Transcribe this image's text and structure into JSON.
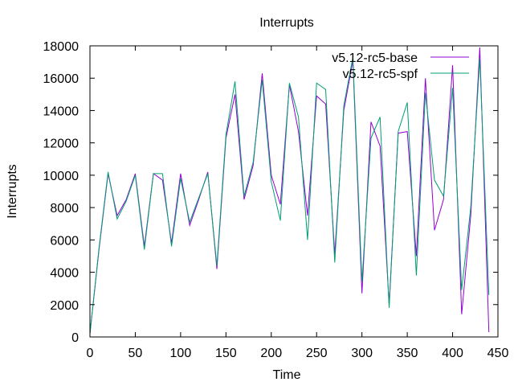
{
  "chart_data": {
    "type": "line",
    "title": "Interrupts",
    "xlabel": "Time",
    "ylabel": "Interrupts",
    "xlim": [
      0,
      450
    ],
    "ylim": [
      0,
      18000
    ],
    "xticks": [
      0,
      50,
      100,
      150,
      200,
      250,
      300,
      350,
      400,
      450
    ],
    "yticks": [
      0,
      2000,
      4000,
      6000,
      8000,
      10000,
      12000,
      14000,
      16000,
      18000
    ],
    "grid": false,
    "legend_position": "top-right",
    "x": [
      0,
      10,
      20,
      30,
      40,
      50,
      60,
      70,
      80,
      90,
      100,
      110,
      120,
      130,
      140,
      150,
      160,
      170,
      180,
      190,
      200,
      210,
      220,
      230,
      240,
      250,
      260,
      270,
      280,
      290,
      300,
      310,
      320,
      330,
      340,
      350,
      360,
      370,
      380,
      390,
      400,
      410,
      420,
      430,
      440
    ],
    "series": [
      {
        "name": "v5.12-rc5-base",
        "color": "#9400d3",
        "values": [
          200,
          5400,
          10100,
          7500,
          8500,
          10100,
          5600,
          10100,
          9700,
          5800,
          10100,
          6900,
          8500,
          10200,
          4200,
          12300,
          15000,
          8500,
          10600,
          16300,
          10000,
          8200,
          15600,
          12700,
          7500,
          14900,
          14400,
          5100,
          14000,
          17100,
          2700,
          13300,
          11800,
          2000,
          12600,
          12700,
          5000,
          16000,
          6600,
          8500,
          16800,
          1400,
          7500,
          17900,
          300
        ]
      },
      {
        "name": "v5.12-rc5-spf",
        "color": "#009e73",
        "values": [
          200,
          5500,
          10200,
          7300,
          8400,
          10000,
          5400,
          10100,
          10100,
          5600,
          9800,
          7100,
          8600,
          10100,
          4400,
          12500,
          15800,
          8700,
          10800,
          15900,
          9600,
          7200,
          15700,
          13600,
          6000,
          15700,
          15300,
          4600,
          14300,
          17300,
          3400,
          12300,
          13600,
          1800,
          12700,
          14500,
          3800,
          15100,
          9700,
          8700,
          15400,
          2900,
          8000,
          17200,
          2600
        ]
      }
    ]
  }
}
